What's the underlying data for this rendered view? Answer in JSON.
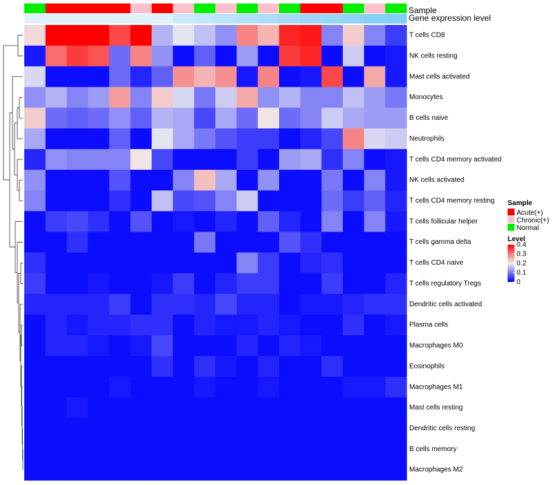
{
  "chart_data": {
    "type": "heatmap",
    "title": "",
    "xlabel": "",
    "ylabel": "",
    "annotation_rows": [
      {
        "name": "Sample",
        "values": [
          "Normal",
          "Acute(+)",
          "Acute(+)",
          "Acute(+)",
          "Acute(+)",
          "Chronic(+)",
          "Acute(+)",
          "Chronic(+)",
          "Normal",
          "Chronic(+)",
          "Normal",
          "Chronic(+)",
          "Normal",
          "Acute(+)",
          "Acute(+)",
          "Normal",
          "Chronic(+)",
          "Normal"
        ]
      },
      {
        "name": "Gene expression level",
        "values": [
          0.9,
          0.9,
          0.9,
          0.9,
          0.9,
          0.9,
          0.9,
          0.75,
          0.7,
          0.65,
          0.6,
          0.55,
          0.5,
          0.45,
          0.4,
          0.35,
          0.3,
          0.25
        ]
      }
    ],
    "rows": [
      "T cells CD8",
      "NK cells resting",
      "Mast cells activated",
      "Monocytes",
      "B cells naive",
      "Neutrophils",
      "T cells CD4 memory activated",
      "NK cells activated",
      "T cells CD4 memory resting",
      "T cells follicular helper",
      "T cells gamma delta",
      "T cells CD4 naive",
      "T cells regulatory  Tregs",
      "Dendritic cells activated",
      "Plasma cells",
      "Macrophages M0",
      "Eosinophils",
      "Macrophages M1",
      "Mast cells resting",
      "Dendritic cells resting",
      "B cells memory",
      "Macrophages M2"
    ],
    "values": [
      [
        0.22,
        0.4,
        0.4,
        0.4,
        0.34,
        0.4,
        0.15,
        0.19,
        0.16,
        0.12,
        0.29,
        0.25,
        0.37,
        0.38,
        0.11,
        0.23,
        0.11,
        0.05
      ],
      [
        0.02,
        0.31,
        0.35,
        0.33,
        0.09,
        0.29,
        0.12,
        0.01,
        0.08,
        0.01,
        0.13,
        0.01,
        0.35,
        0.37,
        0.01,
        0.17,
        0.01,
        0.02
      ],
      [
        0.18,
        0.01,
        0.01,
        0.01,
        0.09,
        0.03,
        0.08,
        0.28,
        0.25,
        0.28,
        0.02,
        0.29,
        0.01,
        0.02,
        0.34,
        0.01,
        0.26,
        0.02
      ],
      [
        0.12,
        0.15,
        0.11,
        0.13,
        0.27,
        0.11,
        0.23,
        0.18,
        0.1,
        0.17,
        0.26,
        0.12,
        0.15,
        0.11,
        0.11,
        0.16,
        0.13,
        0.1
      ],
      [
        0.23,
        0.09,
        0.08,
        0.09,
        0.12,
        0.08,
        0.15,
        0.14,
        0.06,
        0.14,
        0.09,
        0.21,
        0.09,
        0.11,
        0.17,
        0.14,
        0.13,
        0.13
      ],
      [
        0.14,
        0.01,
        0.01,
        0.01,
        0.08,
        0.01,
        0.19,
        0.14,
        0.1,
        0.07,
        0.05,
        0.05,
        0.01,
        0.03,
        0.06,
        0.29,
        0.18,
        0.17
      ],
      [
        0.03,
        0.12,
        0.11,
        0.11,
        0.11,
        0.21,
        0.06,
        0.01,
        0.01,
        0.01,
        0.05,
        0.01,
        0.13,
        0.14,
        0.04,
        0.11,
        0.01,
        0.02
      ],
      [
        0.12,
        0.01,
        0.01,
        0.01,
        0.07,
        0.01,
        0.01,
        0.11,
        0.24,
        0.14,
        0.01,
        0.12,
        0.01,
        0.01,
        0.1,
        0.01,
        0.11,
        0.02
      ],
      [
        0.11,
        0.01,
        0.01,
        0.01,
        0.04,
        0.01,
        0.16,
        0.06,
        0.07,
        0.11,
        0.17,
        0.01,
        0.01,
        0.01,
        0.09,
        0.05,
        0.08,
        0.03
      ],
      [
        0.01,
        0.05,
        0.06,
        0.04,
        0.01,
        0.07,
        0.01,
        0.02,
        0.01,
        0.03,
        0.01,
        0.08,
        0.03,
        0.01,
        0.11,
        0.01,
        0.11,
        0.02
      ],
      [
        0.01,
        0.01,
        0.04,
        0.01,
        0.01,
        0.01,
        0.01,
        0.01,
        0.1,
        0.01,
        0.01,
        0.01,
        0.07,
        0.04,
        0.01,
        0.01,
        0.01,
        0.01
      ],
      [
        0.04,
        0.01,
        0.01,
        0.01,
        0.01,
        0.01,
        0.01,
        0.01,
        0.01,
        0.01,
        0.11,
        0.05,
        0.01,
        0.03,
        0.04,
        0.01,
        0.01,
        0.01
      ],
      [
        0.05,
        0.01,
        0.01,
        0.02,
        0.01,
        0.01,
        0.02,
        0.05,
        0.01,
        0.03,
        0.05,
        0.05,
        0.01,
        0.01,
        0.05,
        0.01,
        0.01,
        0.03
      ],
      [
        0.03,
        0.03,
        0.03,
        0.03,
        0.05,
        0.01,
        0.04,
        0.04,
        0.03,
        0.06,
        0.03,
        0.03,
        0.01,
        0.02,
        0.02,
        0.03,
        0.04,
        0.04
      ],
      [
        0.01,
        0.03,
        0.02,
        0.03,
        0.03,
        0.04,
        0.04,
        0.01,
        0.03,
        0.02,
        0.02,
        0.03,
        0.02,
        0.01,
        0.01,
        0.04,
        0.01,
        0.02
      ],
      [
        0.01,
        0.03,
        0.03,
        0.02,
        0.01,
        0.02,
        0.06,
        0.01,
        0.01,
        0.01,
        0.03,
        0.01,
        0.03,
        0.02,
        0.01,
        0.01,
        0.01,
        0.01
      ],
      [
        0.01,
        0.01,
        0.01,
        0.01,
        0.01,
        0.01,
        0.04,
        0.01,
        0.04,
        0.02,
        0.01,
        0.03,
        0.01,
        0.01,
        0.04,
        0.01,
        0.01,
        0.01
      ],
      [
        0.01,
        0.01,
        0.01,
        0.01,
        0.02,
        0.01,
        0.01,
        0.01,
        0.02,
        0.01,
        0.01,
        0.02,
        0.01,
        0.01,
        0.01,
        0.02,
        0.02,
        0.04
      ],
      [
        0.01,
        0.01,
        0.02,
        0.01,
        0.01,
        0.01,
        0.01,
        0.01,
        0.01,
        0.01,
        0.01,
        0.01,
        0.01,
        0.01,
        0.01,
        0.01,
        0.01,
        0.01
      ],
      [
        0.01,
        0.01,
        0.01,
        0.01,
        0.01,
        0.01,
        0.01,
        0.01,
        0.01,
        0.01,
        0.01,
        0.01,
        0.01,
        0.01,
        0.01,
        0.01,
        0.01,
        0.01
      ],
      [
        0.01,
        0.01,
        0.01,
        0.01,
        0.01,
        0.01,
        0.01,
        0.01,
        0.01,
        0.01,
        0.01,
        0.01,
        0.01,
        0.01,
        0.01,
        0.01,
        0.01,
        0.01
      ],
      [
        0.01,
        0.01,
        0.01,
        0.01,
        0.01,
        0.01,
        0.01,
        0.01,
        0.01,
        0.01,
        0.01,
        0.01,
        0.01,
        0.01,
        0.01,
        0.01,
        0.01,
        0.01
      ]
    ],
    "color_scale": {
      "min": 0,
      "max": 0.4,
      "low": "#0000ff",
      "mid": "#f0f0f0",
      "high": "#ff0000",
      "midpoint": 0.2
    },
    "legend": {
      "sample_title": "Sample",
      "sample_entries": [
        {
          "label": "Acute(+)",
          "color": "#ff0000"
        },
        {
          "label": "Chronic(+)",
          "color": "#ffc0cb"
        },
        {
          "label": "Normal",
          "color": "#00ee00"
        }
      ],
      "level_title": "Level",
      "level_ticks": [
        "0.4",
        "0.3",
        "0.2",
        "0.1",
        "0"
      ],
      "placement": "right"
    },
    "dendrogram": "rows"
  },
  "colors": {
    "sample": {
      "Acute(+)": "#ff0000",
      "Chronic(+)": "#ffc0cb",
      "Normal": "#00ee00"
    },
    "gene_expression_low": "#5bc0f5",
    "gene_expression_high": "#eef6fb"
  }
}
